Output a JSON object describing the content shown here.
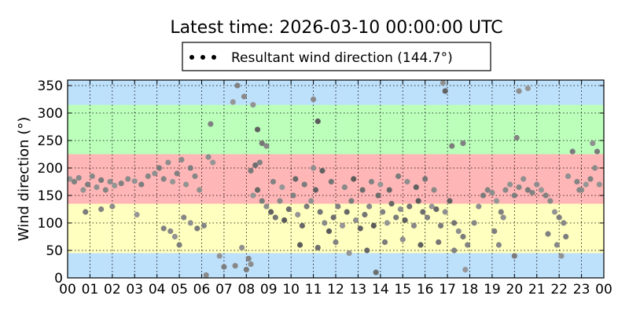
{
  "chart_data": {
    "type": "scatter",
    "title": "Latest time: 2026-03-10 00:00:00 UTC",
    "xlabel": "",
    "ylabel": "Wind direction (°)",
    "ylim": [
      0,
      360
    ],
    "xlim": [
      0,
      24
    ],
    "x_tick_labels": [
      "00",
      "01",
      "02",
      "03",
      "04",
      "05",
      "06",
      "07",
      "08",
      "09",
      "10",
      "11",
      "12",
      "13",
      "14",
      "15",
      "16",
      "17",
      "18",
      "19",
      "20",
      "21",
      "22",
      "23",
      "00"
    ],
    "y_ticks": [
      0,
      50,
      100,
      150,
      200,
      250,
      300,
      350
    ],
    "grid": true,
    "legend": {
      "placement": "top-center",
      "entries": [
        "Resultant wind direction (144.7°)"
      ]
    },
    "bands": [
      {
        "from": 0,
        "to": 45,
        "color": "#bde0fb"
      },
      {
        "from": 45,
        "to": 135,
        "color": "#ffffbf"
      },
      {
        "from": 135,
        "to": 225,
        "color": "#ffb6b6"
      },
      {
        "from": 225,
        "to": 315,
        "color": "#bbffbb"
      },
      {
        "from": 315,
        "to": 360,
        "color": "#bde0fb"
      }
    ],
    "series": [
      {
        "values": [
          [
            0.1,
            180
          ],
          [
            0.3,
            175
          ],
          [
            0.5,
            182
          ],
          [
            0.7,
            160
          ],
          [
            0.9,
            170
          ],
          [
            1.1,
            185
          ],
          [
            1.3,
            165
          ],
          [
            1.5,
            178
          ],
          [
            1.7,
            160
          ],
          [
            1.9,
            175
          ],
          [
            2.1,
            168
          ],
          [
            2.4,
            172
          ],
          [
            2.7,
            180
          ],
          [
            3.0,
            176
          ],
          [
            3.3,
            170
          ],
          [
            3.6,
            185
          ],
          [
            3.9,
            190
          ],
          [
            4.1,
            200
          ],
          [
            4.3,
            180
          ],
          [
            4.5,
            210
          ],
          [
            4.7,
            175
          ],
          [
            4.9,
            190
          ],
          [
            5.1,
            215
          ],
          [
            5.3,
            170
          ],
          [
            5.5,
            200
          ],
          [
            5.7,
            185
          ],
          [
            5.9,
            160
          ],
          [
            0.8,
            120
          ],
          [
            1.5,
            125
          ],
          [
            2.0,
            130
          ],
          [
            3.1,
            115
          ],
          [
            4.3,
            90
          ],
          [
            4.6,
            85
          ],
          [
            4.8,
            75
          ],
          [
            5.0,
            60
          ],
          [
            5.2,
            110
          ],
          [
            5.5,
            100
          ],
          [
            5.8,
            90
          ],
          [
            6.1,
            95
          ],
          [
            6.3,
            220
          ],
          [
            6.5,
            210
          ],
          [
            6.4,
            280
          ],
          [
            6.2,
            5
          ],
          [
            6.8,
            40
          ],
          [
            7.0,
            20
          ],
          [
            7.5,
            22
          ],
          [
            7.8,
            55
          ],
          [
            8.0,
            15
          ],
          [
            8.1,
            35
          ],
          [
            8.2,
            25
          ],
          [
            7.4,
            320
          ],
          [
            7.6,
            350
          ],
          [
            7.9,
            330
          ],
          [
            8.3,
            315
          ],
          [
            8.5,
            270
          ],
          [
            8.7,
            245
          ],
          [
            8.9,
            240
          ],
          [
            8.2,
            195
          ],
          [
            8.4,
            205
          ],
          [
            8.6,
            210
          ],
          [
            8.3,
            150
          ],
          [
            8.5,
            160
          ],
          [
            8.7,
            140
          ],
          [
            8.9,
            130
          ],
          [
            9.1,
            120
          ],
          [
            9.3,
            110
          ],
          [
            9.5,
            140
          ],
          [
            9.7,
            105
          ],
          [
            9.9,
            125
          ],
          [
            10.1,
            150
          ],
          [
            10.3,
            115
          ],
          [
            10.5,
            95
          ],
          [
            10.7,
            130
          ],
          [
            10.9,
            140
          ],
          [
            11.1,
            160
          ],
          [
            11.3,
            120
          ],
          [
            11.5,
            100
          ],
          [
            11.7,
            85
          ],
          [
            11.9,
            110
          ],
          [
            12.1,
            130
          ],
          [
            12.3,
            95
          ],
          [
            12.5,
            120
          ],
          [
            12.7,
            140
          ],
          [
            12.9,
            105
          ],
          [
            13.1,
            90
          ],
          [
            13.3,
            115
          ],
          [
            13.5,
            130
          ],
          [
            13.7,
            95
          ],
          [
            13.9,
            150
          ],
          [
            14.1,
            120
          ],
          [
            14.3,
            100
          ],
          [
            14.5,
            135
          ],
          [
            14.7,
            110
          ],
          [
            14.9,
            125
          ],
          [
            15.1,
            105
          ],
          [
            15.3,
            130
          ],
          [
            15.5,
            95
          ],
          [
            15.7,
            140
          ],
          [
            15.9,
            120
          ],
          [
            16.1,
            110
          ],
          [
            16.3,
            130
          ],
          [
            16.5,
            125
          ],
          [
            16.7,
            95
          ],
          [
            16.9,
            120
          ],
          [
            17.1,
            140
          ],
          [
            17.3,
            100
          ],
          [
            17.5,
            85
          ],
          [
            17.7,
            75
          ],
          [
            17.9,
            60
          ],
          [
            9.2,
            175
          ],
          [
            9.6,
            165
          ],
          [
            10.2,
            180
          ],
          [
            10.6,
            170
          ],
          [
            11.0,
            200
          ],
          [
            11.4,
            195
          ],
          [
            11.8,
            175
          ],
          [
            12.4,
            165
          ],
          [
            12.8,
            180
          ],
          [
            13.2,
            160
          ],
          [
            13.6,
            175
          ],
          [
            14.0,
            170
          ],
          [
            14.4,
            160
          ],
          [
            14.8,
            185
          ],
          [
            15.2,
            175
          ],
          [
            15.6,
            165
          ],
          [
            16.0,
            180
          ],
          [
            16.4,
            160
          ],
          [
            10.4,
            60
          ],
          [
            11.2,
            55
          ],
          [
            12.0,
            65
          ],
          [
            12.6,
            45
          ],
          [
            13.4,
            50
          ],
          [
            14.2,
            65
          ],
          [
            15.0,
            70
          ],
          [
            15.8,
            60
          ],
          [
            16.6,
            65
          ],
          [
            11.0,
            325
          ],
          [
            11.2,
            285
          ],
          [
            13.8,
            10
          ],
          [
            17.3,
            50
          ],
          [
            17.8,
            15
          ],
          [
            17.7,
            245
          ],
          [
            17.2,
            240
          ],
          [
            16.8,
            355
          ],
          [
            16.9,
            340
          ],
          [
            18.2,
            100
          ],
          [
            18.4,
            130
          ],
          [
            18.6,
            150
          ],
          [
            18.8,
            160
          ],
          [
            19.0,
            155
          ],
          [
            19.2,
            140
          ],
          [
            19.4,
            120
          ],
          [
            19.6,
            160
          ],
          [
            19.8,
            170
          ],
          [
            20.0,
            150
          ],
          [
            20.2,
            165
          ],
          [
            20.4,
            180
          ],
          [
            20.6,
            160
          ],
          [
            20.8,
            155
          ],
          [
            21.0,
            170
          ],
          [
            21.2,
            160
          ],
          [
            21.4,
            150
          ],
          [
            21.6,
            140
          ],
          [
            21.8,
            120
          ],
          [
            22.0,
            110
          ],
          [
            22.2,
            100
          ],
          [
            22.4,
            185
          ],
          [
            22.6,
            230
          ],
          [
            22.8,
            175
          ],
          [
            23.0,
            160
          ],
          [
            23.2,
            170
          ],
          [
            23.4,
            180
          ],
          [
            23.6,
            200
          ],
          [
            23.8,
            170
          ],
          [
            19.1,
            85
          ],
          [
            19.3,
            60
          ],
          [
            19.5,
            110
          ],
          [
            20.0,
            40
          ],
          [
            20.1,
            255
          ],
          [
            20.2,
            340
          ],
          [
            20.6,
            345
          ],
          [
            21.5,
            80
          ],
          [
            21.9,
            60
          ],
          [
            22.1,
            40
          ],
          [
            22.3,
            75
          ],
          [
            22.9,
            160
          ],
          [
            23.5,
            245
          ],
          [
            23.7,
            230
          ]
        ]
      }
    ]
  }
}
